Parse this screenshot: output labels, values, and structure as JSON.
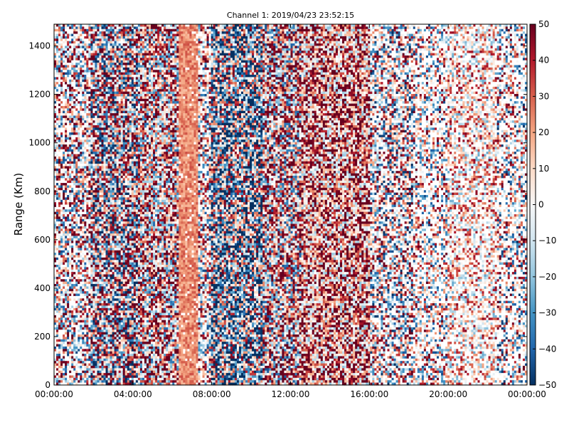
{
  "chart_data": {
    "type": "heatmap",
    "title": "Channel 1: 2019/04/23 23:52:15",
    "ylabel": "Range (Km)",
    "xlabel": "",
    "x_ticks": [
      "00:00:00",
      "04:00:00",
      "08:00:00",
      "12:00:00",
      "16:00:00",
      "20:00:00",
      "00:00:00"
    ],
    "x_range_hours": [
      0,
      24
    ],
    "y_ticks": [
      0,
      200,
      400,
      600,
      800,
      1000,
      1200,
      1400
    ],
    "ylim": [
      0,
      1490
    ],
    "colorbar": {
      "ticks": [
        50,
        40,
        30,
        20,
        10,
        0,
        -10,
        -20,
        -30,
        -40,
        -50
      ],
      "range": [
        -50,
        50
      ],
      "colormap": "RdBu_r",
      "colors": {
        "low": "#053061",
        "mid": "#f7f7f7",
        "high": "#67001f"
      }
    },
    "column_profile": [
      {
        "start_h": 0.0,
        "end_h": 1.8,
        "mean": 8,
        "spread": 42,
        "blank": 0.3
      },
      {
        "start_h": 1.8,
        "end_h": 4.2,
        "mean": 5,
        "spread": 48,
        "blank": 0.05
      },
      {
        "start_h": 4.2,
        "end_h": 6.3,
        "mean": 15,
        "spread": 42,
        "blank": 0.05
      },
      {
        "start_h": 6.3,
        "end_h": 7.3,
        "mean": 24,
        "spread": 7,
        "blank": 0.06
      },
      {
        "start_h": 7.3,
        "end_h": 8.0,
        "mean": 6,
        "spread": 40,
        "blank": 0.3
      },
      {
        "start_h": 8.0,
        "end_h": 10.6,
        "mean": -12,
        "spread": 48,
        "blank": 0.03
      },
      {
        "start_h": 10.6,
        "end_h": 12.6,
        "mean": 15,
        "spread": 45,
        "blank": 0.06
      },
      {
        "start_h": 12.6,
        "end_h": 16.0,
        "mean": 25,
        "spread": 36,
        "blank": 0.03
      },
      {
        "start_h": 16.0,
        "end_h": 18.2,
        "mean": 2,
        "spread": 42,
        "blank": 0.3
      },
      {
        "start_h": 18.2,
        "end_h": 20.0,
        "mean": 4,
        "spread": 38,
        "blank": 0.42
      },
      {
        "start_h": 20.0,
        "end_h": 22.5,
        "mean": 10,
        "spread": 28,
        "blank": 0.35
      },
      {
        "start_h": 22.5,
        "end_h": 24.0,
        "mean": 2,
        "spread": 40,
        "blank": 0.45
      }
    ]
  }
}
